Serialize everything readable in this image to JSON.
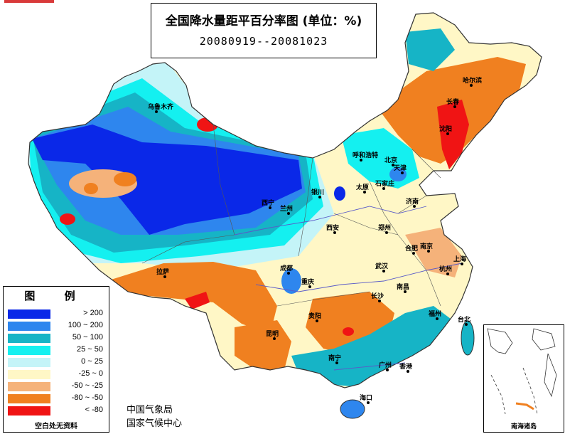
{
  "title": {
    "main": "全国降水量距平百分率图 (单位：%)",
    "period": "20080919--20081023"
  },
  "legend": {
    "title": "图 例",
    "items": [
      {
        "label": "> 200",
        "color": "#0a28e8"
      },
      {
        "label": "100 ~ 200",
        "color": "#2e86ee"
      },
      {
        "label": "50 ~ 100",
        "color": "#16b4c6"
      },
      {
        "label": "25 ~ 50",
        "color": "#14f0f0"
      },
      {
        "label": "0 ~ 25",
        "color": "#c4f4f8"
      },
      {
        "label": "-25 ~ 0",
        "color": "#fff7c6"
      },
      {
        "label": "-50 ~ -25",
        "color": "#f5b27a"
      },
      {
        "label": "-80 ~ -50",
        "color": "#f08020"
      },
      {
        "label": "< -80",
        "color": "#f01414"
      }
    ],
    "note": "空白处无资料"
  },
  "agency": {
    "line1": "中国气象局",
    "line2": "国家气候中心"
  },
  "inset_label": "南海诸岛",
  "cities": [
    {
      "name": "乌鲁木齐",
      "key": "urumqi"
    },
    {
      "name": "哈尔滨",
      "key": "harbin"
    },
    {
      "name": "长春",
      "key": "changchun"
    },
    {
      "name": "沈阳",
      "key": "shenyang"
    },
    {
      "name": "呼和浩特",
      "key": "hohhot"
    },
    {
      "name": "北京",
      "key": "beijing"
    },
    {
      "name": "天津",
      "key": "tianjin"
    },
    {
      "name": "太原",
      "key": "taiyuan"
    },
    {
      "name": "石家庄",
      "key": "shijiazhuang"
    },
    {
      "name": "济南",
      "key": "jinan"
    },
    {
      "name": "银川",
      "key": "yinchuan"
    },
    {
      "name": "西宁",
      "key": "xining"
    },
    {
      "name": "兰州",
      "key": "lanzhou"
    },
    {
      "name": "西安",
      "key": "xian"
    },
    {
      "name": "郑州",
      "key": "zhengzhou"
    },
    {
      "name": "合肥",
      "key": "hefei"
    },
    {
      "name": "南京",
      "key": "nanjing"
    },
    {
      "name": "上海",
      "key": "shanghai"
    },
    {
      "name": "杭州",
      "key": "hangzhou"
    },
    {
      "name": "武汉",
      "key": "wuhan"
    },
    {
      "name": "成都",
      "key": "chengdu"
    },
    {
      "name": "重庆",
      "key": "chongqing"
    },
    {
      "name": "拉萨",
      "key": "lhasa"
    },
    {
      "name": "南昌",
      "key": "nanchang"
    },
    {
      "name": "长沙",
      "key": "changsha"
    },
    {
      "name": "贵阳",
      "key": "guiyang"
    },
    {
      "name": "昆明",
      "key": "kunming"
    },
    {
      "name": "福州",
      "key": "fuzhou"
    },
    {
      "name": "台北",
      "key": "taipei"
    },
    {
      "name": "南宁",
      "key": "nanning"
    },
    {
      "name": "广州",
      "key": "guangzhou"
    },
    {
      "name": "香港",
      "key": "hongkong"
    },
    {
      "name": "海口",
      "key": "haikou"
    }
  ]
}
